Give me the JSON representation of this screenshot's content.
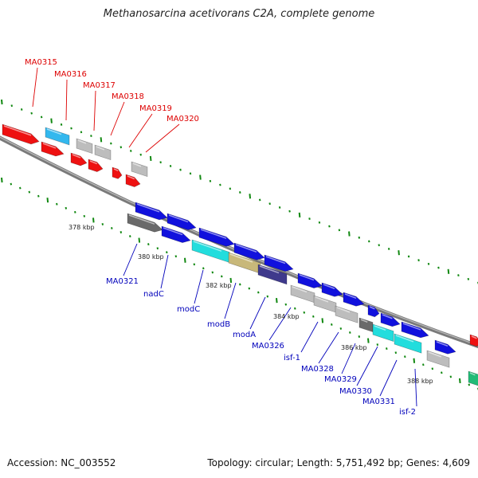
{
  "title": "Methanosarcina acetivorans C2A, complete genome",
  "footer": {
    "accession": "Accession: NC_003552",
    "summary": "Topology: circular; Length: 5,751,492 bp; Genes: 4,609"
  },
  "colors": {
    "red": "#ee1111",
    "blue": "#1111dd",
    "lightblue": "#33b8ee",
    "gray": "#bdbdbd",
    "darkgray": "#6a6a6a",
    "cyan": "#22dddd",
    "tan": "#c8b87a",
    "navy": "#3f3a8c",
    "green": "#22bb77",
    "label_red": "#dd0000",
    "label_blue": "#0000bb",
    "tick_green": "#118811"
  },
  "ruler_labels": [
    "378 kbp",
    "380 kbp",
    "382 kbp",
    "384 kbp",
    "386 kbp",
    "388 kbp"
  ],
  "top_labels": [
    "MA0315",
    "MA0316",
    "MA0317",
    "MA0318",
    "MA0319",
    "MA0320"
  ],
  "bottom_labels": [
    "MA0321",
    "nadC",
    "modC",
    "modB",
    "modA",
    "MA0326",
    "isf-1",
    "MA0328",
    "MA0329",
    "MA0330",
    "MA0331",
    "isf-2"
  ]
}
